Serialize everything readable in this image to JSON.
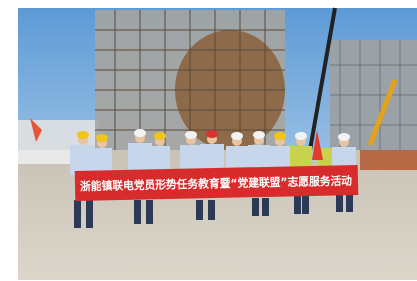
{
  "banner": {
    "text": "浙能镇联电党员形势任务教育暨“党建联盟”志愿服务活动"
  }
}
